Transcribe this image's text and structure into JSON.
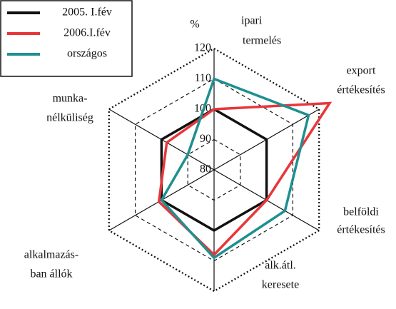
{
  "chart_data": {
    "type": "radar",
    "unit_label": "%",
    "categories": [
      [
        "ipari",
        "termelés"
      ],
      [
        "export",
        "értékesítés"
      ],
      [
        "belföldi",
        "értékesítés"
      ],
      [
        "alk.átl.",
        "keresete"
      ],
      [
        "alkalmazás-",
        "ban állók"
      ],
      [
        "munka-",
        "nélküliség"
      ]
    ],
    "series": [
      {
        "name": "2005. I.fév",
        "color": "#111111",
        "values": [
          100,
          100,
          100,
          100,
          100,
          100
        ]
      },
      {
        "name": "2006.I.fév",
        "color": "#e8363a",
        "values": [
          100,
          124,
          100,
          108,
          101,
          98
        ]
      },
      {
        "name": "országos",
        "color": "#1f8f8f",
        "values": [
          110,
          116,
          107,
          109,
          100,
          90
        ]
      }
    ],
    "ylim": [
      80,
      120
    ],
    "yticks": [
      80,
      90,
      100,
      110,
      120
    ],
    "legend": "upper left"
  }
}
